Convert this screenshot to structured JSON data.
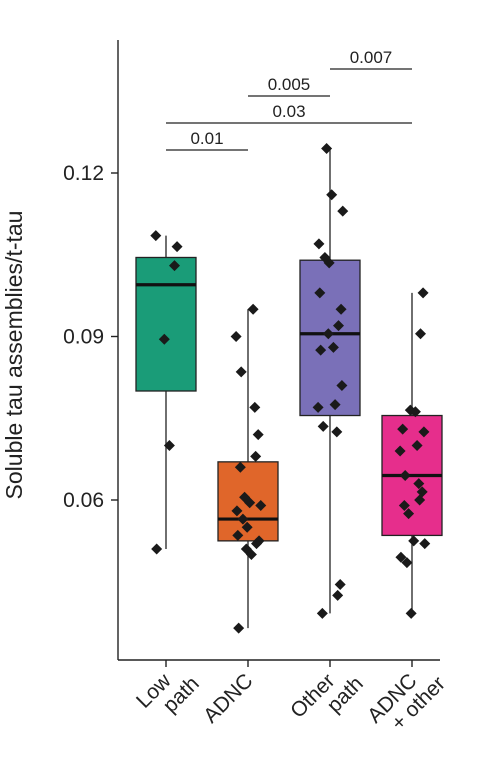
{
  "chart_data": {
    "type": "box",
    "ylabel": "Soluble tau assemblies/t-tau",
    "yticks": [
      "0.06",
      "0.09",
      "0.12"
    ],
    "ytick_values": [
      0.06,
      0.09,
      0.12
    ],
    "ylim": [
      0.033,
      0.148
    ],
    "categories": [
      {
        "lines": [
          "Low",
          "path"
        ],
        "color": "#1a9c78"
      },
      {
        "lines": [
          "ADNC"
        ],
        "color": "#e0662a"
      },
      {
        "lines": [
          "Other",
          "path"
        ],
        "color": "#7a70b8"
      },
      {
        "lines": [
          "ADNC",
          "+ other"
        ],
        "color": "#e62e8c"
      }
    ],
    "boxes": [
      {
        "q1": 0.08,
        "median": 0.0995,
        "q3": 0.1045,
        "whisker_low": 0.051,
        "whisker_high": 0.1085
      },
      {
        "q1": 0.0525,
        "median": 0.0565,
        "q3": 0.067,
        "whisker_low": 0.0365,
        "whisker_high": 0.095
      },
      {
        "q1": 0.0755,
        "median": 0.0905,
        "q3": 0.104,
        "whisker_low": 0.0392,
        "whisker_high": 0.1245
      },
      {
        "q1": 0.0535,
        "median": 0.0645,
        "q3": 0.0755,
        "whisker_low": 0.0392,
        "whisker_high": 0.098
      }
    ],
    "points": [
      [
        0.1085,
        0.1065,
        0.103,
        0.0895,
        0.07,
        0.051
      ],
      [
        0.095,
        0.09,
        0.0835,
        0.077,
        0.072,
        0.068,
        0.066,
        0.0605,
        0.0595,
        0.059,
        0.058,
        0.0565,
        0.055,
        0.0535,
        0.0525,
        0.052,
        0.051,
        0.05,
        0.0365
      ],
      [
        0.1245,
        0.116,
        0.113,
        0.107,
        0.1045,
        0.1035,
        0.098,
        0.095,
        0.092,
        0.0905,
        0.088,
        0.0875,
        0.081,
        0.0775,
        0.077,
        0.0735,
        0.0725,
        0.0445,
        0.0425,
        0.0392
      ],
      [
        0.098,
        0.0905,
        0.0765,
        0.0762,
        0.073,
        0.0725,
        0.07,
        0.069,
        0.0645,
        0.063,
        0.0615,
        0.06,
        0.059,
        0.0575,
        0.0525,
        0.052,
        0.0495,
        0.0485,
        0.0392
      ]
    ],
    "comparisons": [
      {
        "from": 0,
        "to": 1,
        "label": "0.01"
      },
      {
        "from": 0,
        "to": 3,
        "label": "0.03"
      },
      {
        "from": 1,
        "to": 2,
        "label": "0.005"
      },
      {
        "from": 2,
        "to": 3,
        "label": "0.007"
      }
    ]
  }
}
